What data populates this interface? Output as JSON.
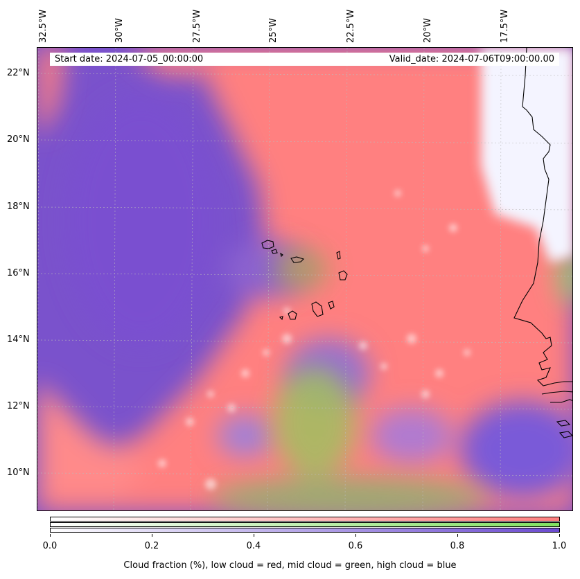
{
  "map": {
    "start_date": "Start date: 2024-07-05_00:00:00",
    "valid_date": "Valid_date: 2024-07-06T09:00:00.00",
    "lon_labels": [
      "32.5°W",
      "30°W",
      "27.5°W",
      "25°W",
      "22.5°W",
      "20°W",
      "17.5°W"
    ],
    "lat_labels": [
      "22°N",
      "20°N",
      "18°N",
      "16°N",
      "14°N",
      "12°N",
      "10°N"
    ],
    "colors": {
      "low_cloud": "#ff7f7f",
      "mid_cloud": "#80e060",
      "high_cloud": "#6b4ad0",
      "clear": "#ffffff"
    }
  },
  "colorbar": {
    "ticks": [
      "0.0",
      "0.2",
      "0.4",
      "0.6",
      "0.8",
      "1.0"
    ],
    "label": "Cloud fraction (%), low cloud = red, mid cloud = green, high cloud = blue"
  }
}
